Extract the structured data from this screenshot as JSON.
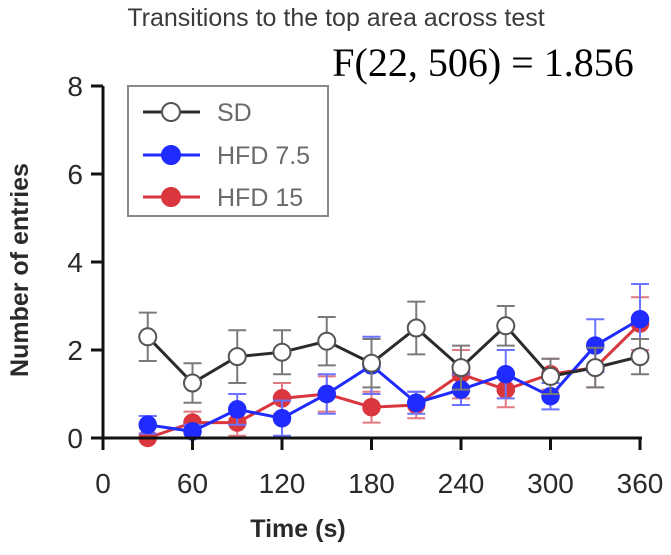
{
  "chart_data": {
    "type": "line",
    "title": "Transitions to the top area across test",
    "annotation": "F(22, 506) = 1.856",
    "xlabel": "Time (s)",
    "ylabel": "Number of entries",
    "xlim": [
      0,
      360
    ],
    "ylim": [
      0,
      8
    ],
    "xticks": [
      "0",
      "60",
      "120",
      "180",
      "240",
      "300",
      "360"
    ],
    "yticks": [
      "0",
      "2",
      "4",
      "6",
      "8"
    ],
    "grid": false,
    "legend_position": "top-left",
    "x": [
      30,
      60,
      90,
      120,
      150,
      180,
      210,
      240,
      270,
      300,
      330,
      360
    ],
    "series": [
      {
        "name": "SD",
        "color": "#2b2b2b",
        "marker": "open-circle",
        "values": [
          2.3,
          1.25,
          1.85,
          1.95,
          2.2,
          1.7,
          2.5,
          1.6,
          2.55,
          1.4,
          1.6,
          1.85
        ],
        "errors": [
          0.55,
          0.45,
          0.6,
          0.5,
          0.55,
          0.55,
          0.6,
          0.5,
          0.45,
          0.4,
          0.45,
          0.4
        ]
      },
      {
        "name": "HFD 7.5",
        "color": "#1f2bff",
        "marker": "filled-circle",
        "values": [
          0.3,
          0.15,
          0.65,
          0.45,
          1.0,
          1.65,
          0.8,
          1.1,
          1.45,
          0.95,
          2.1,
          2.7
        ],
        "errors": [
          0.2,
          0.15,
          0.35,
          0.4,
          0.45,
          0.65,
          0.25,
          0.35,
          0.55,
          0.3,
          0.6,
          0.8
        ]
      },
      {
        "name": "HFD 15",
        "color": "#d9363e",
        "marker": "filled-circle",
        "values": [
          0.0,
          0.35,
          0.35,
          0.9,
          1.0,
          0.7,
          0.75,
          1.45,
          1.1,
          1.45,
          1.6,
          2.6
        ],
        "errors": [
          0.1,
          0.25,
          0.3,
          0.35,
          0.4,
          0.35,
          0.3,
          0.55,
          0.4,
          0.35,
          0.45,
          0.6
        ]
      }
    ]
  }
}
